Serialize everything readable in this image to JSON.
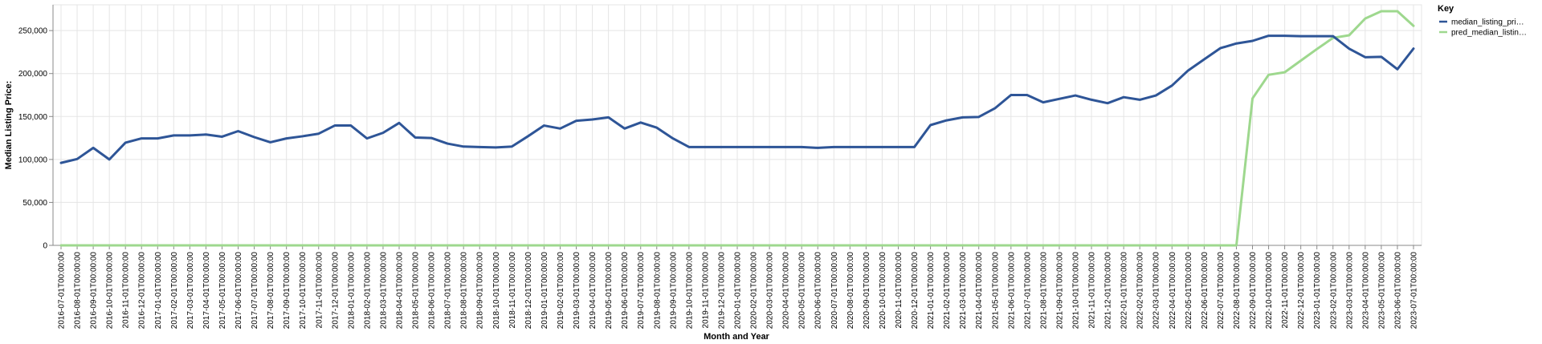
{
  "chart_data": {
    "type": "line",
    "xlabel": "Month and Year",
    "ylabel": "Median Listing Price:",
    "ylim": [
      0,
      280000
    ],
    "yticks": [
      0,
      50000,
      100000,
      150000,
      200000,
      250000
    ],
    "ytick_labels": [
      "0",
      "50,000",
      "100,000",
      "150,000",
      "200,000",
      "250,000"
    ],
    "grid": true,
    "legend": {
      "title": "Key",
      "position": "right"
    },
    "colors": {
      "median": "#2e5597",
      "pred": "#9ed88e",
      "grid": "#e5e5e5",
      "axis": "#888888"
    },
    "x": [
      "2016-07-01T00:00:00",
      "2016-08-01T00:00:00",
      "2016-09-01T00:00:00",
      "2016-10-01T00:00:00",
      "2016-11-01T00:00:00",
      "2016-12-01T00:00:00",
      "2017-01-01T00:00:00",
      "2017-02-01T00:00:00",
      "2017-03-01T00:00:00",
      "2017-04-01T00:00:00",
      "2017-05-01T00:00:00",
      "2017-06-01T00:00:00",
      "2017-07-01T00:00:00",
      "2017-08-01T00:00:00",
      "2017-09-01T00:00:00",
      "2017-10-01T00:00:00",
      "2017-11-01T00:00:00",
      "2017-12-01T00:00:00",
      "2018-01-01T00:00:00",
      "2018-02-01T00:00:00",
      "2018-03-01T00:00:00",
      "2018-04-01T00:00:00",
      "2018-05-01T00:00:00",
      "2018-06-01T00:00:00",
      "2018-07-01T00:00:00",
      "2018-08-01T00:00:00",
      "2018-09-01T00:00:00",
      "2018-10-01T00:00:00",
      "2018-11-01T00:00:00",
      "2018-12-01T00:00:00",
      "2019-01-01T00:00:00",
      "2019-02-01T00:00:00",
      "2019-03-01T00:00:00",
      "2019-04-01T00:00:00",
      "2019-05-01T00:00:00",
      "2019-06-01T00:00:00",
      "2019-07-01T00:00:00",
      "2019-08-01T00:00:00",
      "2019-09-01T00:00:00",
      "2019-10-01T00:00:00",
      "2019-11-01T00:00:00",
      "2019-12-01T00:00:00",
      "2020-01-01T00:00:00",
      "2020-02-01T00:00:00",
      "2020-03-01T00:00:00",
      "2020-04-01T00:00:00",
      "2020-05-01T00:00:00",
      "2020-06-01T00:00:00",
      "2020-07-01T00:00:00",
      "2020-08-01T00:00:00",
      "2020-09-01T00:00:00",
      "2020-10-01T00:00:00",
      "2020-11-01T00:00:00",
      "2020-12-01T00:00:00",
      "2021-01-01T00:00:00",
      "2021-02-01T00:00:00",
      "2021-03-01T00:00:00",
      "2021-04-01T00:00:00",
      "2021-05-01T00:00:00",
      "2021-06-01T00:00:00",
      "2021-07-01T00:00:00",
      "2021-08-01T00:00:00",
      "2021-09-01T00:00:00",
      "2021-10-01T00:00:00",
      "2021-11-01T00:00:00",
      "2021-12-01T00:00:00",
      "2022-01-01T00:00:00",
      "2022-02-01T00:00:00",
      "2022-03-01T00:00:00",
      "2022-04-01T00:00:00",
      "2022-05-01T00:00:00",
      "2022-06-01T00:00:00",
      "2022-07-01T00:00:00",
      "2022-08-01T00:00:00",
      "2022-09-01T00:00:00",
      "2022-10-01T00:00:00",
      "2022-11-01T00:00:00",
      "2022-12-01T00:00:00",
      "2023-01-01T00:00:00",
      "2023-02-01T00:00:00",
      "2023-03-01T00:00:00",
      "2023-04-01T00:00:00",
      "2023-05-01T00:00:00",
      "2023-06-01T00:00:00",
      "2023-07-01T00:00:00"
    ],
    "series": [
      {
        "name": "median_listing_pri…",
        "key": "median",
        "values": [
          96000,
          100500,
          113500,
          100000,
          119500,
          124500,
          124500,
          128000,
          128000,
          129000,
          126500,
          133000,
          126000,
          120000,
          124500,
          127000,
          130000,
          139500,
          139500,
          124500,
          131000,
          142500,
          125500,
          125000,
          118500,
          115000,
          114500,
          114000,
          115000,
          127000,
          139500,
          136000,
          145000,
          146500,
          149000,
          136000,
          143000,
          137000,
          124500,
          114500,
          114500,
          114500,
          114500,
          114500,
          114500,
          114500,
          114500,
          113500,
          114500,
          114500,
          114500,
          114500,
          114500,
          114500,
          140000,
          145500,
          149000,
          149500,
          159500,
          175000,
          175000,
          166500,
          170500,
          174500,
          169500,
          165500,
          172500,
          169500,
          174500,
          186000,
          203500,
          216500,
          229500,
          235000,
          238000,
          244000,
          244000,
          243500,
          243500,
          243500,
          229000,
          219000,
          219500,
          205000,
          229000
        ]
      },
      {
        "name": "pred_median_listin…",
        "key": "pred",
        "values": [
          0,
          0,
          0,
          0,
          0,
          0,
          0,
          0,
          0,
          0,
          0,
          0,
          0,
          0,
          0,
          0,
          0,
          0,
          0,
          0,
          0,
          0,
          0,
          0,
          0,
          0,
          0,
          0,
          0,
          0,
          0,
          0,
          0,
          0,
          0,
          0,
          0,
          0,
          0,
          0,
          0,
          0,
          0,
          0,
          0,
          0,
          0,
          0,
          0,
          0,
          0,
          0,
          0,
          0,
          0,
          0,
          0,
          0,
          0,
          0,
          0,
          0,
          0,
          0,
          0,
          0,
          0,
          0,
          0,
          0,
          0,
          0,
          0,
          0,
          171000,
          198500,
          201500,
          215000,
          228500,
          241500,
          244500,
          264000,
          272500,
          272500,
          255500
        ]
      }
    ]
  }
}
